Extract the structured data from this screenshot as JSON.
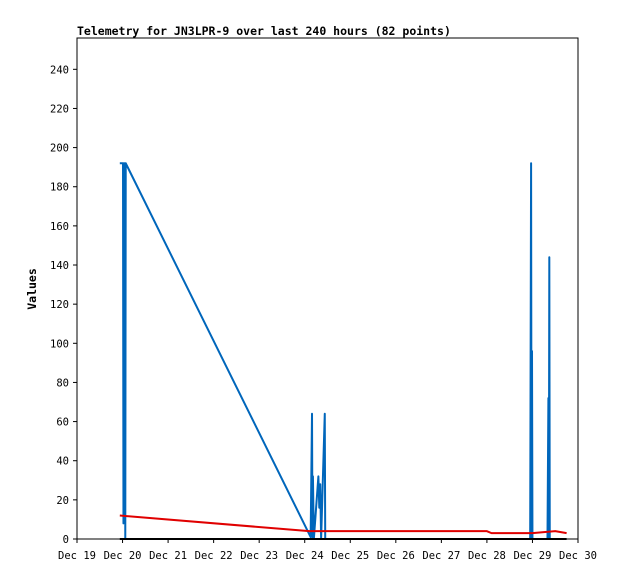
{
  "chart_data": {
    "type": "line",
    "title": "Telemetry for JN3LPR-9 over last 240 hours (82 points)",
    "xlabel": "",
    "ylabel": "Values",
    "x_range": [
      "Dec 19",
      "Dec 30"
    ],
    "x_ticks": [
      "Dec 19",
      "Dec 20",
      "Dec 21",
      "Dec 22",
      "Dec 23",
      "Dec 24",
      "Dec 25",
      "Dec 26",
      "Dec 27",
      "Dec 28",
      "Dec 29",
      "Dec 30"
    ],
    "ylim": [
      0,
      256
    ],
    "y_ticks": [
      0,
      20,
      40,
      60,
      80,
      100,
      120,
      140,
      160,
      180,
      200,
      220,
      240
    ],
    "grid": false,
    "legend": "none",
    "series": [
      {
        "color": "#0066bb",
        "points": [
          [
            19.94,
            192
          ],
          [
            20.01,
            192
          ],
          [
            20.02,
            8
          ],
          [
            20.03,
            192
          ],
          [
            20.04,
            96
          ],
          [
            20.05,
            192
          ],
          [
            20.06,
            0
          ],
          [
            20.07,
            192
          ],
          [
            24.13,
            1
          ],
          [
            24.16,
            64
          ],
          [
            24.17,
            0
          ],
          [
            24.18,
            32
          ],
          [
            24.2,
            0
          ],
          [
            24.3,
            32
          ],
          [
            24.32,
            16
          ],
          [
            24.34,
            28
          ],
          [
            24.36,
            0
          ],
          [
            24.38,
            16
          ],
          [
            24.44,
            64
          ],
          [
            24.45,
            0
          ],
          [
            28.95,
            0
          ],
          [
            28.97,
            192
          ],
          [
            28.98,
            0
          ],
          [
            28.99,
            96
          ],
          [
            29.0,
            0
          ],
          [
            29.33,
            0
          ],
          [
            29.35,
            72
          ],
          [
            29.36,
            0
          ],
          [
            29.37,
            144
          ],
          [
            29.38,
            0
          ]
        ]
      },
      {
        "color": "#e00000",
        "points": [
          [
            19.94,
            12
          ],
          [
            24.1,
            4
          ],
          [
            28.0,
            4
          ],
          [
            28.1,
            3
          ],
          [
            29.0,
            3
          ],
          [
            29.5,
            4
          ],
          [
            29.75,
            3
          ]
        ]
      },
      {
        "color": "#000000",
        "points": [
          [
            19.94,
            0
          ],
          [
            29.75,
            0
          ]
        ]
      }
    ]
  }
}
